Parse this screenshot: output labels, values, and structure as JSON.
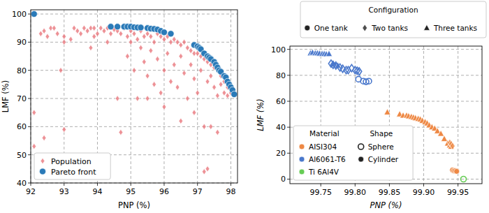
{
  "chart_data": [
    {
      "type": "scatter",
      "x_label": "PNP (%)",
      "y_label": "LMF (%)",
      "xlim": [
        92,
        98.2
      ],
      "ylim": [
        40,
        101.5
      ],
      "xticks": [
        92,
        93,
        94,
        95,
        96,
        97,
        98
      ],
      "yticks": [
        40,
        50,
        60,
        70,
        80,
        90,
        100
      ],
      "grid": true,
      "legend": "lower left",
      "series": [
        {
          "name": "Population",
          "color": "#e8767c",
          "marker": "diamond",
          "x": [
            92.1,
            92.1,
            92.3,
            92.4,
            92.5,
            92.6,
            92.7,
            92.8,
            93.0,
            93.0,
            92.9,
            93.0,
            92.4,
            93.2,
            93.3,
            93.4,
            93.5,
            93.6,
            93.7,
            93.8,
            93.9,
            93.9,
            94.0,
            94.1,
            94.2,
            94.3,
            94.3,
            94.4,
            94.5,
            94.6,
            94.7,
            94.8,
            94.9,
            94.9,
            95.0,
            95.0,
            95.1,
            95.1,
            95.2,
            95.2,
            95.3,
            95.3,
            95.4,
            95.4,
            95.5,
            95.5,
            95.6,
            95.6,
            95.7,
            95.7,
            95.8,
            95.8,
            95.9,
            95.9,
            96.0,
            96.0,
            96.1,
            96.1,
            96.2,
            96.2,
            96.3,
            96.3,
            96.4,
            96.4,
            96.5,
            96.5,
            96.6,
            96.6,
            96.7,
            96.7,
            96.8,
            96.8,
            96.9,
            96.9,
            97.0,
            97.0,
            97.1,
            97.1,
            97.2,
            97.2,
            97.3,
            97.3,
            97.3,
            97.4,
            97.4,
            97.5,
            97.5,
            97.6,
            97.6,
            97.7,
            97.7,
            97.8,
            97.8,
            97.9,
            97.9,
            98.0,
            97.4,
            97.2,
            96.9,
            96.0,
            95.5,
            94.6,
            93.8,
            94.7,
            97.6,
            96.5
          ],
          "values": [
            65,
            53,
            93,
            94,
            92,
            95,
            95,
            93,
            92,
            90,
            80,
            59,
            56,
            91,
            95,
            94,
            93,
            95,
            94,
            95,
            95,
            92,
            93,
            95,
            94,
            95,
            90,
            93,
            94.5,
            94,
            93,
            95,
            92,
            85,
            94,
            90,
            93,
            80,
            91,
            70,
            94,
            88,
            92,
            83,
            93,
            78,
            92,
            87,
            90,
            75,
            93,
            84,
            92,
            72,
            91,
            80,
            92,
            86,
            90,
            76,
            91,
            82,
            90,
            74,
            89,
            85,
            90,
            79,
            88,
            70,
            87,
            82,
            86,
            77,
            86,
            72,
            85,
            80,
            84,
            60,
            83,
            76,
            45,
            82,
            78,
            81,
            74,
            80,
            71,
            78,
            75,
            76,
            72,
            74,
            71,
            72,
            60,
            44,
            65,
            67,
            70,
            70,
            88,
            58,
            58,
            62
          ]
        },
        {
          "name": "Pareto front",
          "color": "#2a7ab8",
          "marker": "circle",
          "x": [
            92.1,
            94.4,
            94.6,
            94.8,
            94.9,
            95.0,
            95.1,
            95.2,
            95.3,
            95.5,
            95.6,
            95.7,
            95.8,
            95.9,
            96.0,
            96.2,
            96.9,
            97.0,
            97.05,
            97.1,
            97.2,
            97.3,
            97.35,
            97.4,
            97.5,
            97.55,
            97.6,
            97.65,
            97.7,
            97.8,
            97.85,
            97.9,
            97.95,
            98.0,
            98.05,
            98.1
          ],
          "values": [
            100,
            95.5,
            95.5,
            95.5,
            95.5,
            95.5,
            95.3,
            95.2,
            95.2,
            95,
            94.8,
            94.7,
            94.5,
            94,
            93.5,
            93,
            89,
            88.5,
            88,
            87.5,
            86,
            85,
            84.5,
            84,
            83,
            82,
            81,
            80,
            79.5,
            78,
            77.5,
            76,
            75,
            74,
            73,
            71.5
          ]
        }
      ]
    },
    {
      "type": "scatter",
      "x_label": "PNP (%)",
      "y_label": "LMF (%)",
      "xlim": [
        99.705,
        99.985
      ],
      "ylim": [
        -3.5,
        102.5
      ],
      "xticks": [
        99.75,
        {
          "value": 99.8,
          "label": "99.80"
        },
        99.85,
        {
          "value": 99.9,
          "label": "99.90"
        },
        99.95
      ],
      "yticks": [
        0,
        20,
        40,
        60,
        80,
        100
      ],
      "grid": true,
      "legend_groups": [
        {
          "title": "Configuration",
          "legend": "top",
          "entries": [
            {
              "label": "One tank",
              "marker": "circle"
            },
            {
              "label": "Two tanks",
              "marker": "diamond"
            },
            {
              "label": "Three tanks",
              "marker": "triangle"
            }
          ]
        },
        {
          "title": "Material",
          "legend": "lower left",
          "entries": [
            {
              "label": "AISI304",
              "color": "#ee8844"
            },
            {
              "label": "Al6061-T6",
              "color": "#4a78cc"
            },
            {
              "label": "Ti 6Al4V",
              "color": "#66cc55"
            }
          ]
        },
        {
          "title": "Shape",
          "legend": "lower left",
          "entries": [
            {
              "label": "Sphere",
              "marker": "circle-open"
            },
            {
              "label": "Cylinder",
              "marker": "circle"
            }
          ]
        }
      ],
      "series": [
        {
          "material": "Al6061-T6",
          "configuration": "Three tanks",
          "shape": "Cylinder",
          "x": [
            99.735,
            99.738,
            99.742,
            99.745,
            99.748,
            99.752,
            99.755,
            99.758,
            99.762,
            99.768,
            99.772,
            99.775
          ],
          "values": [
            97,
            97.5,
            97,
            97,
            96.8,
            96.5,
            96.5,
            96.3,
            96.5,
            88.5,
            88,
            87.5
          ]
        },
        {
          "material": "Al6061-T6",
          "configuration": "Two tanks",
          "shape": "Sphere",
          "x": [
            99.765,
            99.768,
            99.772,
            99.778,
            99.782,
            99.787,
            99.79,
            99.795,
            99.8,
            99.803,
            99.806
          ],
          "values": [
            89,
            88,
            87.5,
            86,
            85,
            84,
            84,
            85.5,
            84,
            83.5,
            83
          ]
        },
        {
          "material": "Al6061-T6",
          "configuration": "One tank",
          "shape": "Sphere",
          "x": [
            99.805,
            99.812,
            99.816,
            99.82
          ],
          "values": [
            77,
            75.5,
            75,
            75.5
          ]
        },
        {
          "material": "AISI304",
          "configuration": "Three tanks",
          "shape": "Cylinder",
          "x": [
            99.847,
            99.865,
            99.87,
            99.875,
            99.878,
            99.882,
            99.885,
            99.888,
            99.892,
            99.895,
            99.898,
            99.902,
            99.905,
            99.908,
            99.912,
            99.916,
            99.92,
            99.925,
            99.93,
            99.935,
            99.938,
            99.94
          ],
          "values": [
            51.5,
            50,
            49,
            49,
            48.5,
            48,
            47.5,
            47,
            46.5,
            46,
            45,
            44,
            43,
            41.5,
            40,
            39,
            37,
            35,
            31,
            27.5,
            26,
            25
          ]
        },
        {
          "material": "AISI304",
          "configuration": "Two tanks",
          "shape": "Cylinder",
          "x": [
            99.938,
            99.94,
            99.942
          ],
          "values": [
            28,
            27,
            25.5
          ]
        },
        {
          "material": "AISI304",
          "configuration": "One tank",
          "shape": "Cylinder",
          "x": [
            99.942,
            99.944,
            99.946,
            99.948
          ],
          "values": [
            7,
            6.5,
            6.5,
            6
          ]
        },
        {
          "material": "Ti 6Al4V",
          "configuration": "One tank",
          "shape": "Sphere",
          "x": [
            99.958
          ],
          "values": [
            0
          ]
        }
      ]
    }
  ]
}
